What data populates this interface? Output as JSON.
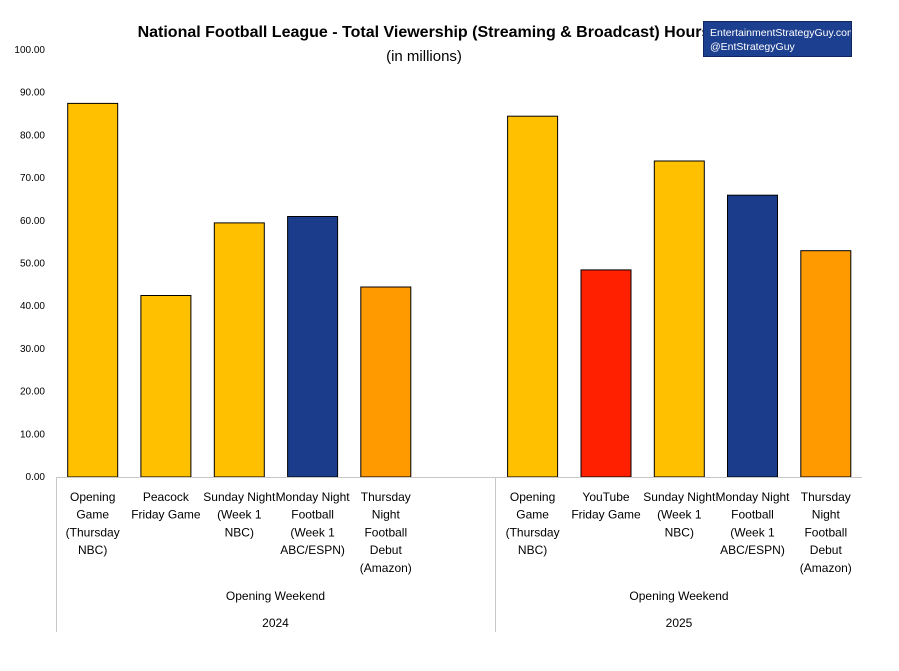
{
  "chart_data": {
    "type": "bar",
    "title": "National Football League - Total Viewership (Streaming & Broadcast) Hours",
    "subtitle": "(in millions)",
    "xlabel": "",
    "ylabel": "",
    "ylim": [
      0,
      100
    ],
    "yticks": [
      "0.00",
      "10.00",
      "20.00",
      "30.00",
      "40.00",
      "50.00",
      "60.00",
      "70.00",
      "80.00",
      "90.00",
      "100.00"
    ],
    "grid": false,
    "groups": [
      {
        "year": "2024",
        "label": "Opening Weekend",
        "bars": [
          {
            "label": [
              "Opening",
              "Game",
              "(Thursday",
              "NBC)"
            ],
            "value": 87.5,
            "color": "#ffc000"
          },
          {
            "label": [
              "Peacock",
              "Friday Game"
            ],
            "value": 42.5,
            "color": "#ffc000"
          },
          {
            "label": [
              "Sunday Night",
              "(Week 1",
              "NBC)"
            ],
            "value": 59.5,
            "color": "#ffc000"
          },
          {
            "label": [
              "Monday Night",
              "Football",
              "(Week 1",
              "ABC/ESPN)"
            ],
            "value": 61.0,
            "color": "#1a3c8a"
          },
          {
            "label": [
              "Thursday",
              "Night",
              "Football",
              "Debut",
              "(Amazon)"
            ],
            "value": 44.5,
            "color": "#ff9a00"
          }
        ]
      },
      {
        "year": "2025",
        "label": "Opening Weekend",
        "bars": [
          {
            "label": [
              "Opening",
              "Game",
              "(Thursday",
              "NBC)"
            ],
            "value": 84.5,
            "color": "#ffc000"
          },
          {
            "label": [
              "YouTube",
              "Friday Game"
            ],
            "value": 48.5,
            "color": "#ff2000"
          },
          {
            "label": [
              "Sunday Night",
              "(Week 1",
              "NBC)"
            ],
            "value": 74.0,
            "color": "#ffc000"
          },
          {
            "label": [
              "Monday Night",
              "Football",
              "(Week 1",
              "ABC/ESPN)"
            ],
            "value": 66.0,
            "color": "#1a3c8a"
          },
          {
            "label": [
              "Thursday",
              "Night",
              "Football",
              "Debut",
              "(Amazon)"
            ],
            "value": 53.0,
            "color": "#ff9a00"
          }
        ]
      }
    ]
  },
  "badge": {
    "line1": "EntertainmentStrategyGuy.com",
    "line2": "@EntStrategyGuy"
  }
}
